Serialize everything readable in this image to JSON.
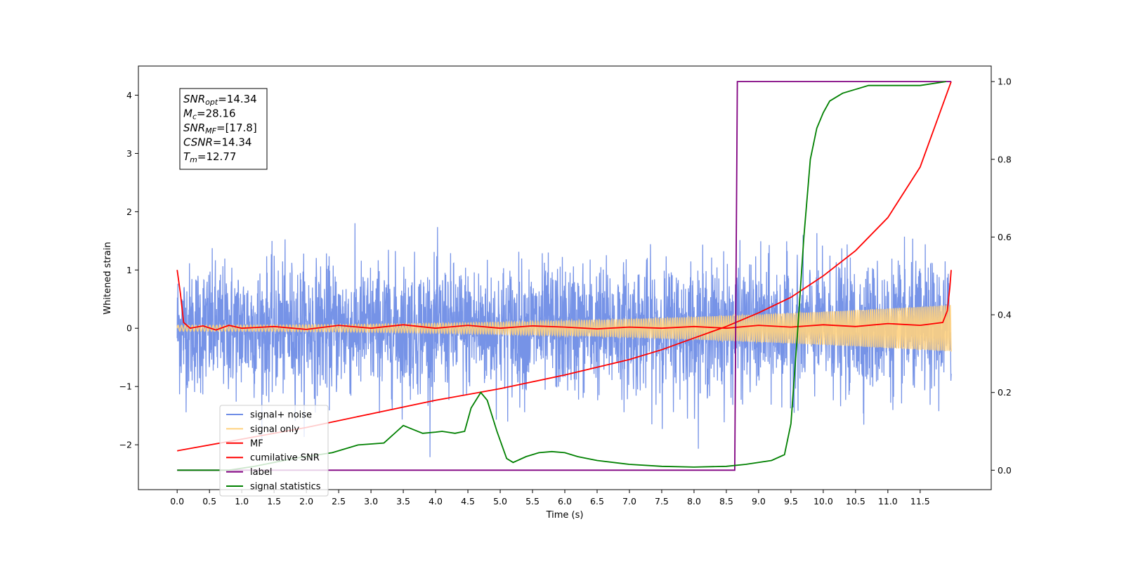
{
  "chart_data": {
    "type": "line",
    "xlabel": "Time (s)",
    "ylabel": "Whitened strain",
    "xlim": [
      -0.6,
      12.6
    ],
    "ylim": [
      -2.77,
      4.5
    ],
    "y2lim": [
      -0.05,
      1.04
    ],
    "xticks": [
      "0.0",
      "0.5",
      "1.0",
      "1.5",
      "2.0",
      "2.5",
      "3.0",
      "3.5",
      "4.0",
      "4.5",
      "5.0",
      "5.5",
      "6.0",
      "6.5",
      "7.0",
      "7.5",
      "8.0",
      "8.5",
      "9.0",
      "9.5",
      "10.0",
      "10.5",
      "11.0",
      "11.5"
    ],
    "yticks": [
      "−2",
      "−1",
      "0",
      "1",
      "2",
      "3",
      "4"
    ],
    "y2ticks": [
      "0.0",
      "0.2",
      "0.4",
      "0.6",
      "0.8",
      "1.0"
    ],
    "annotation": [
      {
        "sym": "SNR",
        "sub": "opt",
        "val": "=14.34"
      },
      {
        "sym": "M",
        "sub": "c",
        "val": "=28.16"
      },
      {
        "sym": "SNR",
        "sub": "MF",
        "val": "=[17.8]"
      },
      {
        "sym": "CSNR",
        "sub": "",
        "val": "=14.34"
      },
      {
        "sym": "T",
        "sub": "m",
        "val": "=12.77"
      }
    ],
    "legend": {
      "placement": "lower-left",
      "entries": [
        {
          "label": "signal+ noise",
          "color": "#6f8de6"
        },
        {
          "label": "signal only",
          "color": "#ffd27f"
        },
        {
          "label": "MF",
          "color": "#ff0000"
        },
        {
          "label": "cumilative SNR",
          "color": "#ff0000"
        },
        {
          "label": "label",
          "color": "#800080"
        },
        {
          "label": "signal statistics",
          "color": "#008000"
        }
      ]
    },
    "series": [
      {
        "name": "signal+ noise",
        "axis": "left",
        "color": "#6f8de6",
        "kind": "noise",
        "x_range": [
          0.0,
          11.98
        ],
        "mean": 0.0,
        "std": 0.55,
        "min": -2.4,
        "max": 2.12
      },
      {
        "name": "signal only",
        "axis": "left",
        "color": "#ffd27f",
        "kind": "chirp",
        "x_range": [
          0.0,
          11.98
        ],
        "amplitude_start": 0.05,
        "amplitude_end": 0.4
      },
      {
        "name": "MF",
        "axis": "left",
        "color": "#ff0000",
        "x": [
          0.0,
          0.05,
          0.1,
          0.2,
          0.4,
          0.6,
          0.8,
          1.0,
          1.5,
          2.0,
          2.5,
          3.0,
          3.5,
          4.0,
          4.5,
          5.0,
          5.5,
          6.0,
          6.5,
          7.0,
          7.5,
          8.0,
          8.5,
          9.0,
          9.5,
          10.0,
          10.5,
          11.0,
          11.5,
          11.85,
          11.92,
          11.96,
          11.98
        ],
        "y": [
          1.0,
          0.6,
          0.1,
          0.0,
          0.04,
          -0.03,
          0.05,
          0.0,
          0.03,
          -0.02,
          0.05,
          0.0,
          0.06,
          0.0,
          0.05,
          0.0,
          0.04,
          0.02,
          -0.01,
          0.02,
          0.0,
          0.03,
          0.0,
          0.05,
          0.02,
          0.06,
          0.03,
          0.08,
          0.05,
          0.1,
          0.3,
          0.7,
          1.0
        ]
      },
      {
        "name": "cumilative SNR",
        "axis": "right",
        "color": "#ff0000",
        "x": [
          0.0,
          1.0,
          2.0,
          3.0,
          4.0,
          5.0,
          6.0,
          7.0,
          7.5,
          8.0,
          8.5,
          9.0,
          9.5,
          10.0,
          10.5,
          11.0,
          11.5,
          11.98
        ],
        "y": [
          0.05,
          0.08,
          0.11,
          0.145,
          0.18,
          0.21,
          0.245,
          0.285,
          0.31,
          0.34,
          0.37,
          0.405,
          0.445,
          0.5,
          0.565,
          0.65,
          0.78,
          1.0
        ]
      },
      {
        "name": "label",
        "axis": "right",
        "color": "#800080",
        "x": [
          0.0,
          8.63,
          8.67,
          11.98
        ],
        "y": [
          0.0,
          0.0,
          1.0,
          1.0
        ]
      },
      {
        "name": "signal statistics",
        "axis": "right",
        "color": "#008000",
        "x": [
          0.0,
          0.8,
          1.2,
          1.8,
          2.4,
          2.8,
          3.2,
          3.4,
          3.5,
          3.65,
          3.8,
          4.0,
          4.1,
          4.3,
          4.45,
          4.55,
          4.7,
          4.8,
          4.95,
          5.1,
          5.2,
          5.4,
          5.6,
          5.8,
          6.0,
          6.2,
          6.5,
          7.0,
          7.5,
          8.0,
          8.5,
          8.8,
          9.2,
          9.4,
          9.5,
          9.6,
          9.7,
          9.8,
          9.9,
          10.0,
          10.1,
          10.3,
          10.5,
          10.7,
          11.0,
          11.3,
          11.5,
          11.9
        ],
        "y": [
          0.0,
          0.0,
          0.01,
          0.03,
          0.045,
          0.065,
          0.07,
          0.1,
          0.115,
          0.105,
          0.095,
          0.098,
          0.1,
          0.095,
          0.1,
          0.16,
          0.2,
          0.18,
          0.1,
          0.03,
          0.02,
          0.035,
          0.045,
          0.048,
          0.045,
          0.035,
          0.025,
          0.015,
          0.01,
          0.008,
          0.01,
          0.015,
          0.025,
          0.04,
          0.12,
          0.35,
          0.6,
          0.8,
          0.88,
          0.92,
          0.95,
          0.97,
          0.98,
          0.99,
          0.99,
          0.99,
          0.99,
          1.0
        ]
      }
    ]
  }
}
